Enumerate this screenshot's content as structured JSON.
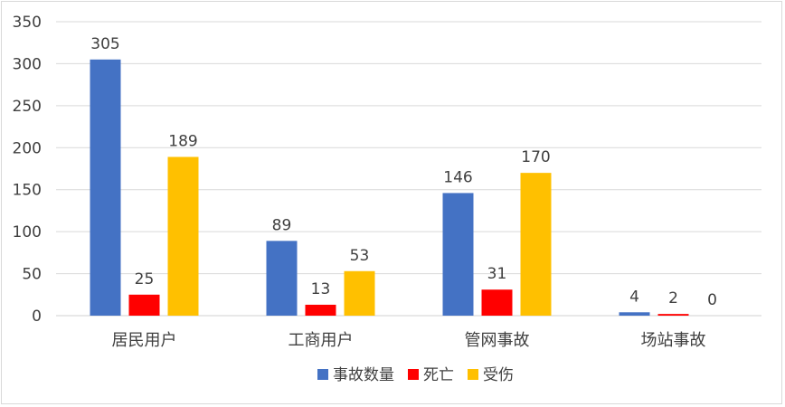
{
  "chart_data": {
    "type": "bar",
    "categories": [
      "居民用户",
      "工商用户",
      "管网事故",
      "场站事故"
    ],
    "series": [
      {
        "name": "事故数量",
        "color": "#4472C4",
        "values": [
          305,
          89,
          146,
          4
        ]
      },
      {
        "name": "死亡",
        "color": "#FF0000",
        "values": [
          25,
          13,
          31,
          2
        ]
      },
      {
        "name": "受伤",
        "color": "#FFC000",
        "values": [
          189,
          53,
          170,
          0
        ]
      }
    ],
    "ylim": [
      0,
      350
    ],
    "yticks": [
      0,
      50,
      100,
      150,
      200,
      250,
      300,
      350
    ],
    "grid": true,
    "legend_position": "bottom",
    "data_labels": true
  }
}
